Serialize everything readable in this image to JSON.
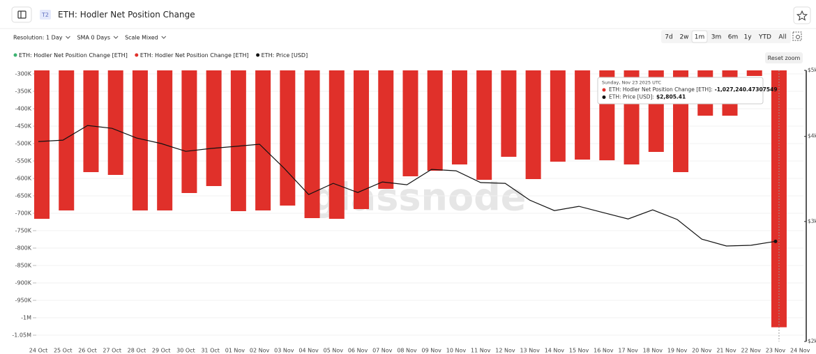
{
  "chart_data": {
    "type": "bar",
    "title": "ETH: Hodler Net Position Change",
    "badge": "T2",
    "watermark": "glassnode",
    "categories": [
      "24 Oct",
      "25 Oct",
      "26 Oct",
      "27 Oct",
      "28 Oct",
      "29 Oct",
      "30 Oct",
      "31 Oct",
      "01 Nov",
      "02 Nov",
      "03 Nov",
      "04 Nov",
      "05 Nov",
      "06 Nov",
      "07 Nov",
      "08 Nov",
      "09 Nov",
      "10 Nov",
      "11 Nov",
      "12 Nov",
      "13 Nov",
      "14 Nov",
      "15 Nov",
      "16 Nov",
      "17 Nov",
      "18 Nov",
      "19 Nov",
      "20 Nov",
      "21 Nov",
      "22 Nov",
      "23 Nov",
      "24 Nov"
    ],
    "series": [
      {
        "name": "ETH: Hodler Net Position Change [ETH]",
        "color": "#3cb371",
        "type": "bar",
        "values": [
          null,
          null,
          null,
          null,
          null,
          null,
          null,
          null,
          null,
          null,
          null,
          null,
          null,
          null,
          null,
          null,
          null,
          null,
          null,
          null,
          null,
          null,
          null,
          null,
          null,
          null,
          null,
          null,
          null,
          null,
          null,
          null
        ]
      },
      {
        "name": "ETH: Hodler Net Position Change [ETH]",
        "color": "#e0302a",
        "type": "bar",
        "values": [
          -716000,
          -692000,
          -582000,
          -590000,
          -692000,
          -692000,
          -642000,
          -622000,
          -694000,
          -692000,
          -678000,
          -714000,
          -716000,
          -688000,
          -630000,
          -594000,
          -578000,
          -560000,
          -604000,
          -538000,
          -602000,
          -552000,
          -546000,
          -548000,
          -560000,
          -524000,
          -582000,
          -420000,
          -420000,
          -306000,
          -1027240.47307549,
          null
        ]
      },
      {
        "name": "ETH: Price [USD]",
        "color": "#111111",
        "type": "line",
        "axis": "y2",
        "values": [
          3931,
          3950,
          4150,
          4110,
          3978,
          3904,
          3803,
          3840,
          3867,
          3895,
          3593,
          3286,
          3413,
          3309,
          3429,
          3397,
          3578,
          3561,
          3422,
          3413,
          3225,
          3113,
          3158,
          3091,
          3026,
          3120,
          3020,
          2826,
          2762,
          2768,
          2805.41,
          null
        ]
      }
    ],
    "ylim": [
      -1060000,
      -290000
    ],
    "yticks": [
      {
        "value": -300000,
        "label": "-300K"
      },
      {
        "value": -350000,
        "label": "-350K"
      },
      {
        "value": -400000,
        "label": "-400K"
      },
      {
        "value": -450000,
        "label": "-450K"
      },
      {
        "value": -500000,
        "label": "-500K"
      },
      {
        "value": -550000,
        "label": "-550K"
      },
      {
        "value": -600000,
        "label": "-600K"
      },
      {
        "value": -650000,
        "label": "-650K"
      },
      {
        "value": -700000,
        "label": "-700K"
      },
      {
        "value": -750000,
        "label": "-750K"
      },
      {
        "value": -800000,
        "label": "-800K"
      },
      {
        "value": -850000,
        "label": "-850K"
      },
      {
        "value": -900000,
        "label": "-900K"
      },
      {
        "value": -950000,
        "label": "-950K"
      },
      {
        "value": -1000000,
        "label": "-1M"
      },
      {
        "value": -1050000,
        "label": "-1.05M"
      }
    ],
    "y2lim": [
      2000,
      5000
    ],
    "y2log": true,
    "y2ticks": [
      {
        "value": 5000,
        "label": "$5k"
      },
      {
        "value": 4000,
        "label": "$4k"
      },
      {
        "value": 3000,
        "label": "$3k"
      },
      {
        "value": 2000,
        "label": "$2k"
      }
    ],
    "grid": true,
    "tooltip": {
      "date": "Sunday, Nov 23 2025 UTC",
      "rows": [
        {
          "label": "ETH: Hodler Net Position Change [ETH]:",
          "value": "-1,027,240.47307549"
        },
        {
          "label": "ETH: Price [USD]:",
          "value": "$2,805.41"
        }
      ]
    }
  },
  "ui": {
    "controls": [
      "Resolution: 1 Day",
      "SMA 0 Days",
      "Scale Mixed"
    ],
    "ranges": [
      "7d",
      "2w",
      "1m",
      "3m",
      "6m",
      "1y",
      "YTD",
      "All"
    ],
    "selected_range": "1m",
    "reset_zoom": "Reset zoom"
  }
}
